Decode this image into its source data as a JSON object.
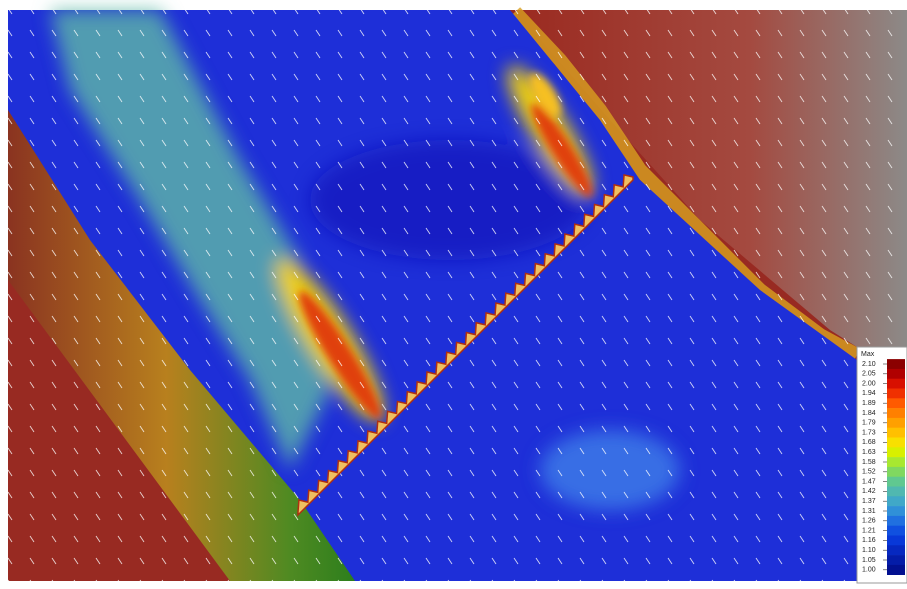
{
  "legend": {
    "title": "Max",
    "labels": [
      "2.10",
      "2.05",
      "2.00",
      "1.94",
      "1.89",
      "1.84",
      "1.79",
      "1.73",
      "1.68",
      "1.63",
      "1.58",
      "1.52",
      "1.47",
      "1.42",
      "1.37",
      "1.31",
      "1.26",
      "1.21",
      "1.16",
      "1.10",
      "1.05",
      "1.00"
    ]
  }
}
